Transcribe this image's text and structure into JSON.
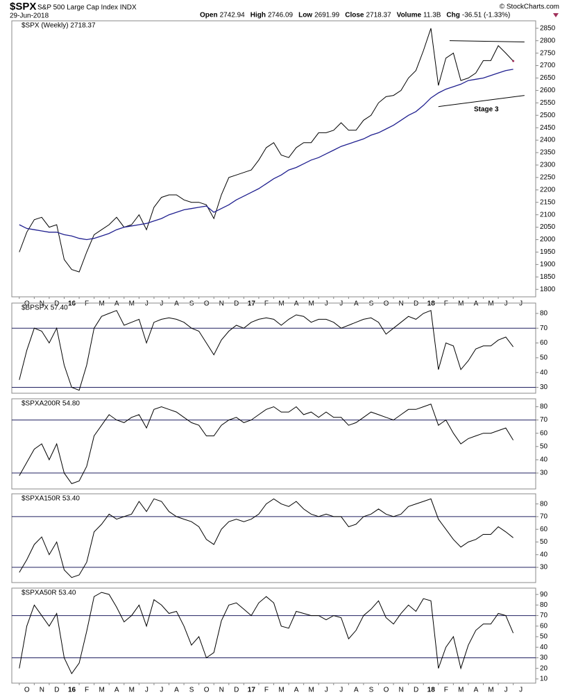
{
  "header": {
    "symbol": "$SPX",
    "name": "S&P 500 Large Cap Index INDX",
    "date": "29-Jun-2018",
    "quote": [
      [
        "Open",
        "2742.94"
      ],
      [
        "High",
        "2746.09"
      ],
      [
        "Low",
        "2691.99"
      ],
      [
        "Close",
        "2718.37"
      ],
      [
        "Volume",
        "11.3B"
      ],
      [
        "Chg",
        "-36.51 (-1.33%)"
      ]
    ],
    "credit": "© StockCharts.com"
  },
  "chart_data": [
    {
      "type": "line",
      "title": "$SPX (Weekly) 2718.37",
      "xlim": [
        -1,
        69
      ],
      "ylim": [
        1770,
        2880
      ],
      "yticks": [
        1800,
        1850,
        1900,
        1950,
        2000,
        2050,
        2100,
        2150,
        2200,
        2250,
        2300,
        2350,
        2400,
        2450,
        2500,
        2550,
        2600,
        2650,
        2700,
        2750,
        2800,
        2850
      ],
      "xticks": [
        {
          "value": 0,
          "label": "O"
        },
        {
          "value": 2,
          "label": "N"
        },
        {
          "value": 4,
          "label": "D"
        },
        {
          "value": 6,
          "label": "16"
        },
        {
          "value": 8,
          "label": "F"
        },
        {
          "value": 10,
          "label": "M"
        },
        {
          "value": 12,
          "label": "A"
        },
        {
          "value": 14,
          "label": "M"
        },
        {
          "value": 16,
          "label": "J"
        },
        {
          "value": 18,
          "label": "J"
        },
        {
          "value": 20,
          "label": "A"
        },
        {
          "value": 22,
          "label": "S"
        },
        {
          "value": 24,
          "label": "O"
        },
        {
          "value": 26,
          "label": "N"
        },
        {
          "value": 28,
          "label": "D"
        },
        {
          "value": 30,
          "label": "17"
        },
        {
          "value": 32,
          "label": "F"
        },
        {
          "value": 34,
          "label": "M"
        },
        {
          "value": 36,
          "label": "A"
        },
        {
          "value": 38,
          "label": "M"
        },
        {
          "value": 40,
          "label": "J"
        },
        {
          "value": 42,
          "label": "J"
        },
        {
          "value": 44,
          "label": "A"
        },
        {
          "value": 46,
          "label": "S"
        },
        {
          "value": 48,
          "label": "O"
        },
        {
          "value": 50,
          "label": "N"
        },
        {
          "value": 52,
          "label": "D"
        },
        {
          "value": 54,
          "label": "18"
        },
        {
          "value": 56,
          "label": "F"
        },
        {
          "value": 58,
          "label": "M"
        },
        {
          "value": 60,
          "label": "A"
        },
        {
          "value": 62,
          "label": "M"
        },
        {
          "value": 64,
          "label": "J"
        },
        {
          "value": 66,
          "label": "J"
        }
      ],
      "series": [
        {
          "name": "$SPX (Weekly) 2718.37",
          "color": "#000000",
          "values": [
            1950,
            2030,
            2080,
            2090,
            2050,
            2060,
            1920,
            1880,
            1870,
            1950,
            2020,
            2040,
            2060,
            2090,
            2050,
            2060,
            2100,
            2040,
            2130,
            2170,
            2180,
            2180,
            2160,
            2150,
            2150,
            2140,
            2085,
            2180,
            2250,
            2260,
            2270,
            2280,
            2320,
            2370,
            2390,
            2340,
            2330,
            2370,
            2390,
            2390,
            2430,
            2430,
            2440,
            2470,
            2440,
            2440,
            2480,
            2500,
            2550,
            2575,
            2580,
            2600,
            2650,
            2680,
            2760,
            2850,
            2620,
            2730,
            2750,
            2640,
            2650,
            2670,
            2720,
            2720,
            2780,
            2750,
            2718.37
          ]
        },
        {
          "color": "#1f1f8f",
          "values": [
            2060,
            2045,
            2040,
            2035,
            2030,
            2030,
            2020,
            2015,
            2005,
            2000,
            2005,
            2015,
            2025,
            2040,
            2050,
            2055,
            2060,
            2065,
            2075,
            2085,
            2100,
            2110,
            2120,
            2125,
            2130,
            2135,
            2110,
            2125,
            2140,
            2160,
            2175,
            2190,
            2205,
            2225,
            2245,
            2260,
            2280,
            2290,
            2305,
            2320,
            2330,
            2345,
            2360,
            2375,
            2385,
            2395,
            2405,
            2420,
            2430,
            2445,
            2460,
            2480,
            2500,
            2515,
            2540,
            2570,
            2590,
            2605,
            2615,
            2625,
            2640,
            2645,
            2650,
            2660,
            2670,
            2680,
            2685
          ]
        }
      ],
      "trendlines": [
        {
          "x": [
            57.5,
            67.5
          ],
          "y": [
            2800,
            2795
          ]
        },
        {
          "x": [
            56,
            67.5
          ],
          "y": [
            2535,
            2580
          ]
        }
      ],
      "annotation": "Stage 3"
    },
    {
      "type": "line",
      "title": "$BPSPX 57.40",
      "xlim": [
        -1,
        69
      ],
      "ylim": [
        26,
        87
      ],
      "yticks": [
        30,
        40,
        50,
        60,
        70,
        80
      ],
      "hlines": [
        30,
        70
      ],
      "series": [
        {
          "name": "$BPSPX 57.40",
          "color": "#000000",
          "values": [
            35,
            55,
            70,
            68,
            60,
            70,
            45,
            30,
            28,
            45,
            70,
            78,
            80,
            82,
            72,
            74,
            76,
            60,
            74,
            76,
            77,
            76,
            74,
            70,
            68,
            60,
            52,
            62,
            68,
            72,
            70,
            74,
            76,
            77,
            76,
            72,
            76,
            79,
            78,
            74,
            76,
            76,
            74,
            70,
            72,
            74,
            76,
            77,
            74,
            66,
            70,
            74,
            78,
            76,
            80,
            82,
            42,
            60,
            58,
            42,
            48,
            56,
            58,
            58,
            62,
            64,
            57.4
          ]
        }
      ]
    },
    {
      "type": "line",
      "title": "$SPXA200R 54.80",
      "xlim": [
        -1,
        69
      ],
      "ylim": [
        18,
        86
      ],
      "yticks": [
        30,
        40,
        50,
        60,
        70,
        80
      ],
      "hlines": [
        30,
        70
      ],
      "series": [
        {
          "name": "$SPXA200R 54.80",
          "color": "#000000",
          "values": [
            28,
            38,
            48,
            52,
            40,
            52,
            30,
            22,
            24,
            35,
            58,
            66,
            74,
            70,
            68,
            72,
            74,
            64,
            78,
            80,
            78,
            76,
            72,
            68,
            66,
            58,
            58,
            66,
            70,
            72,
            68,
            70,
            74,
            78,
            80,
            76,
            76,
            80,
            74,
            76,
            72,
            76,
            72,
            72,
            66,
            68,
            72,
            76,
            74,
            72,
            70,
            74,
            78,
            78,
            80,
            82,
            66,
            70,
            60,
            52,
            56,
            58,
            60,
            60,
            62,
            64,
            54.8
          ]
        }
      ]
    },
    {
      "type": "line",
      "title": "$SPXA150R 53.40",
      "xlim": [
        -1,
        69
      ],
      "ylim": [
        18,
        88
      ],
      "yticks": [
        30,
        40,
        50,
        60,
        70,
        80
      ],
      "hlines": [
        30,
        70
      ],
      "series": [
        {
          "name": "$SPXA150R 53.40",
          "color": "#000000",
          "values": [
            26,
            36,
            48,
            54,
            40,
            50,
            28,
            22,
            24,
            34,
            58,
            64,
            72,
            68,
            70,
            72,
            82,
            74,
            84,
            82,
            74,
            70,
            68,
            66,
            62,
            52,
            48,
            60,
            66,
            68,
            66,
            68,
            72,
            80,
            84,
            80,
            78,
            82,
            76,
            72,
            70,
            72,
            70,
            70,
            62,
            64,
            70,
            72,
            76,
            72,
            70,
            72,
            78,
            80,
            82,
            84,
            68,
            60,
            52,
            46,
            50,
            52,
            56,
            56,
            62,
            58,
            53.4
          ]
        }
      ]
    },
    {
      "type": "line",
      "title": "$SPXA50R 53.40",
      "xlim": [
        -1,
        69
      ],
      "ylim": [
        6,
        96
      ],
      "yticks": [
        10,
        20,
        30,
        40,
        50,
        60,
        70,
        80,
        90
      ],
      "hlines": [
        30,
        70
      ],
      "xticks": [
        {
          "value": 0,
          "label": "O"
        },
        {
          "value": 2,
          "label": "N"
        },
        {
          "value": 4,
          "label": "D"
        },
        {
          "value": 6,
          "label": "16"
        },
        {
          "value": 8,
          "label": "F"
        },
        {
          "value": 10,
          "label": "M"
        },
        {
          "value": 12,
          "label": "A"
        },
        {
          "value": 14,
          "label": "M"
        },
        {
          "value": 16,
          "label": "J"
        },
        {
          "value": 18,
          "label": "J"
        },
        {
          "value": 20,
          "label": "A"
        },
        {
          "value": 22,
          "label": "S"
        },
        {
          "value": 24,
          "label": "O"
        },
        {
          "value": 26,
          "label": "N"
        },
        {
          "value": 28,
          "label": "D"
        },
        {
          "value": 30,
          "label": "17"
        },
        {
          "value": 32,
          "label": "F"
        },
        {
          "value": 34,
          "label": "M"
        },
        {
          "value": 36,
          "label": "A"
        },
        {
          "value": 38,
          "label": "M"
        },
        {
          "value": 40,
          "label": "J"
        },
        {
          "value": 42,
          "label": "J"
        },
        {
          "value": 44,
          "label": "A"
        },
        {
          "value": 46,
          "label": "S"
        },
        {
          "value": 48,
          "label": "O"
        },
        {
          "value": 50,
          "label": "N"
        },
        {
          "value": 52,
          "label": "D"
        },
        {
          "value": 54,
          "label": "18"
        },
        {
          "value": 56,
          "label": "F"
        },
        {
          "value": 58,
          "label": "M"
        },
        {
          "value": 60,
          "label": "A"
        },
        {
          "value": 62,
          "label": "M"
        },
        {
          "value": 64,
          "label": "J"
        },
        {
          "value": 66,
          "label": "J"
        }
      ],
      "series": [
        {
          "name": "$SPXA50R 53.40",
          "color": "#000000",
          "values": [
            20,
            60,
            80,
            70,
            60,
            72,
            30,
            15,
            25,
            55,
            88,
            92,
            90,
            78,
            64,
            70,
            80,
            60,
            85,
            80,
            72,
            74,
            60,
            42,
            50,
            30,
            35,
            65,
            80,
            82,
            76,
            70,
            82,
            88,
            82,
            60,
            58,
            74,
            72,
            70,
            70,
            66,
            70,
            68,
            48,
            56,
            70,
            76,
            84,
            68,
            62,
            72,
            80,
            74,
            86,
            84,
            20,
            40,
            50,
            20,
            42,
            56,
            62,
            62,
            72,
            70,
            53.4
          ]
        }
      ]
    }
  ]
}
